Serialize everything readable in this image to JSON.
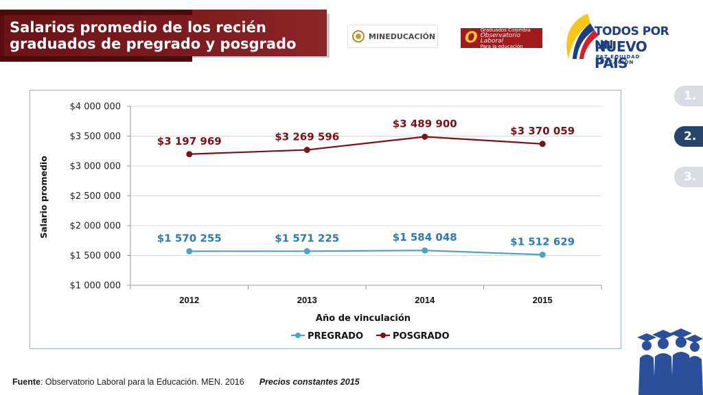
{
  "header": {
    "title": "Salarios promedio de los recién graduados de pregrado y posgrado"
  },
  "logos": {
    "men": "MINEDUCACIÓN",
    "observatorio_top": "Graduados Colombia",
    "observatorio_main": "Observatorio Laboral",
    "observatorio_sub": "Para la educación",
    "tpn_line1": "TODOS POR UN",
    "tpn_line2": "NUEVO PAÍS",
    "tpn_line3": "PAZ   EQUIDAD   EDUCACIÓN"
  },
  "nav": {
    "items": [
      "1.",
      "2.",
      "3."
    ],
    "active": "2."
  },
  "footer": {
    "source_label": "Fuente",
    "source_text": ": Observatorio Laboral para la Educación. MEN. 2016",
    "prices": "Precios constantes  2015"
  },
  "colors": {
    "pregrado": "#4aa3c7",
    "posgrado": "#7a1116",
    "pregrado_label": "#2a7ab8",
    "posgrado_label": "#7a1116",
    "title_bg": "#7e1c20",
    "nav_active": "#274469",
    "nav_inactive": "#d9dde3"
  },
  "chart_data": {
    "type": "line",
    "xlabel": "Año de vinculación",
    "ylabel": "Salario promedio",
    "categories": [
      "2012",
      "2013",
      "2014",
      "2015"
    ],
    "ylim": [
      1000000,
      4000000
    ],
    "yticks": [
      "$1 000 000",
      "$1 500 000",
      "$2 000 000",
      "$2 500 000",
      "$3 000 000",
      "$3 500 000",
      "$4 000 000"
    ],
    "ytick_values": [
      1000000,
      1500000,
      2000000,
      2500000,
      3000000,
      3500000,
      4000000
    ],
    "grid": "horizontal",
    "legend_position": "bottom",
    "series": [
      {
        "name": "PREGRADO",
        "values": [
          1570255,
          1571225,
          1584048,
          1512629
        ],
        "labels": [
          "$1 570 255",
          "$1 571 225",
          "$1 584 048",
          "$1 512 629"
        ]
      },
      {
        "name": "POSGRADO",
        "values": [
          3197969,
          3269596,
          3489900,
          3370059
        ],
        "labels": [
          "$3 197 969",
          "$3 269 596",
          "$3 489 900",
          "$3 370 059"
        ]
      }
    ]
  }
}
